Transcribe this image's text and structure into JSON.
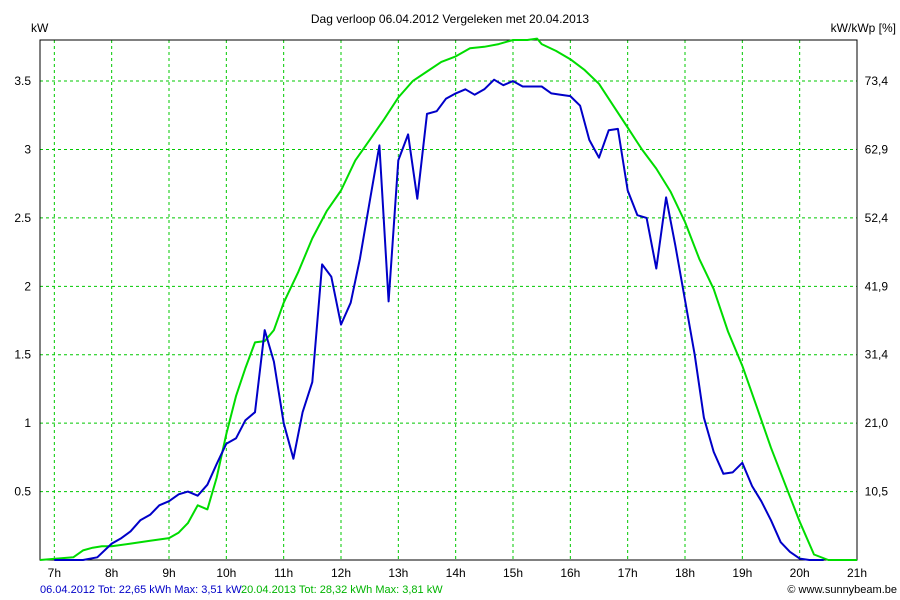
{
  "chart_data": {
    "type": "line",
    "title": "Dag  verloop 06.04.2012   Vergeleken met 20.04.2013",
    "ylabel_left": "kW",
    "ylabel_right": "kW/kWp [%]",
    "xlim": [
      6.75,
      21
    ],
    "ylim": [
      0,
      3.8
    ],
    "x_ticks": [
      7,
      8,
      9,
      10,
      11,
      12,
      13,
      14,
      15,
      16,
      17,
      18,
      19,
      20,
      21
    ],
    "x_tick_labels": [
      "7h",
      "8h",
      "9h",
      "10h",
      "11h",
      "12h",
      "13h",
      "14h",
      "15h",
      "16h",
      "17h",
      "18h",
      "19h",
      "20h",
      "21h"
    ],
    "y_ticks": [
      0.5,
      1,
      1.5,
      2,
      2.5,
      3,
      3.5
    ],
    "y_tick_labels": [
      "0.5",
      "1",
      "1.5",
      "2",
      "2.5",
      "3",
      "3.5"
    ],
    "y2_tick_labels": [
      "10,5",
      "21,0",
      "31,4",
      "41,9",
      "52,4",
      "62,9",
      "73,4"
    ],
    "grid": true,
    "series": [
      {
        "name": "06.04.2012 Tot: 22,65 kWh Max: 3,51 kW",
        "color": "#0000c8",
        "x": [
          7.0,
          7.5,
          7.75,
          8.0,
          8.17,
          8.33,
          8.5,
          8.67,
          8.83,
          9.0,
          9.17,
          9.33,
          9.5,
          9.67,
          9.83,
          10.0,
          10.17,
          10.33,
          10.5,
          10.67,
          10.83,
          11.0,
          11.17,
          11.33,
          11.5,
          11.67,
          11.83,
          12.0,
          12.17,
          12.33,
          12.5,
          12.67,
          12.83,
          13.0,
          13.17,
          13.33,
          13.5,
          13.67,
          13.83,
          14.0,
          14.17,
          14.33,
          14.5,
          14.67,
          14.83,
          15.0,
          15.17,
          15.33,
          15.5,
          15.67,
          15.83,
          16.0,
          16.17,
          16.33,
          16.5,
          16.67,
          16.83,
          17.0,
          17.17,
          17.33,
          17.5,
          17.67,
          17.83,
          18.0,
          18.17,
          18.33,
          18.5,
          18.67,
          18.83,
          19.0,
          19.17,
          19.33,
          19.5,
          19.67,
          19.83,
          20.0,
          20.17,
          20.42
        ],
        "values": [
          0.0,
          0.0,
          0.02,
          0.12,
          0.16,
          0.21,
          0.29,
          0.33,
          0.4,
          0.43,
          0.48,
          0.5,
          0.47,
          0.55,
          0.7,
          0.85,
          0.89,
          1.02,
          1.08,
          1.68,
          1.45,
          1.0,
          0.74,
          1.08,
          1.3,
          2.16,
          2.07,
          1.72,
          1.88,
          2.2,
          2.62,
          3.03,
          1.89,
          2.92,
          3.11,
          2.64,
          3.26,
          3.28,
          3.37,
          3.41,
          3.44,
          3.4,
          3.44,
          3.51,
          3.47,
          3.5,
          3.46,
          3.46,
          3.46,
          3.41,
          3.4,
          3.39,
          3.32,
          3.07,
          2.94,
          3.14,
          3.15,
          2.7,
          2.52,
          2.5,
          2.13,
          2.65,
          2.3,
          1.9,
          1.5,
          1.04,
          0.79,
          0.63,
          0.64,
          0.71,
          0.54,
          0.43,
          0.29,
          0.13,
          0.06,
          0.01,
          0.0,
          0.0
        ]
      },
      {
        "name": "20.04.2013 Tot: 28,32 kWh Max: 3,81 kW",
        "color": "#00dc00",
        "x": [
          6.75,
          7.33,
          7.5,
          7.67,
          7.83,
          8.0,
          8.33,
          8.67,
          9.0,
          9.17,
          9.33,
          9.5,
          9.67,
          9.83,
          10.0,
          10.17,
          10.33,
          10.5,
          10.67,
          10.83,
          11.0,
          11.25,
          11.5,
          11.75,
          12.0,
          12.25,
          12.5,
          12.75,
          13.0,
          13.25,
          13.5,
          13.75,
          14.0,
          14.25,
          14.5,
          14.75,
          15.0,
          15.25,
          15.42,
          15.5,
          15.75,
          16.0,
          16.25,
          16.5,
          16.75,
          17.0,
          17.25,
          17.5,
          17.75,
          18.0,
          18.25,
          18.5,
          18.75,
          19.0,
          19.25,
          19.5,
          19.75,
          20.0,
          20.25,
          20.5,
          20.75,
          21.0
        ],
        "values": [
          0.0,
          0.02,
          0.07,
          0.09,
          0.1,
          0.1,
          0.12,
          0.14,
          0.16,
          0.2,
          0.27,
          0.4,
          0.37,
          0.6,
          0.92,
          1.2,
          1.4,
          1.59,
          1.6,
          1.68,
          1.88,
          2.1,
          2.35,
          2.55,
          2.7,
          2.92,
          3.07,
          3.22,
          3.38,
          3.5,
          3.57,
          3.64,
          3.68,
          3.74,
          3.75,
          3.77,
          3.8,
          3.8,
          3.81,
          3.77,
          3.72,
          3.66,
          3.58,
          3.48,
          3.32,
          3.16,
          3.0,
          2.86,
          2.69,
          2.47,
          2.2,
          1.98,
          1.67,
          1.42,
          1.12,
          0.82,
          0.55,
          0.28,
          0.04,
          0.0,
          0.0,
          0.0
        ]
      }
    ],
    "footer_left": [
      {
        "text": "06.04.2012 Tot: 22,65 kWh Max: 3,51 kW",
        "color": "#0000c8"
      },
      {
        "text": "20.04.2013 Tot: 28,32 kWh Max: 3,81 kW",
        "color": "#00b400"
      }
    ],
    "footer_right": "© www.sunnybeam.be"
  }
}
